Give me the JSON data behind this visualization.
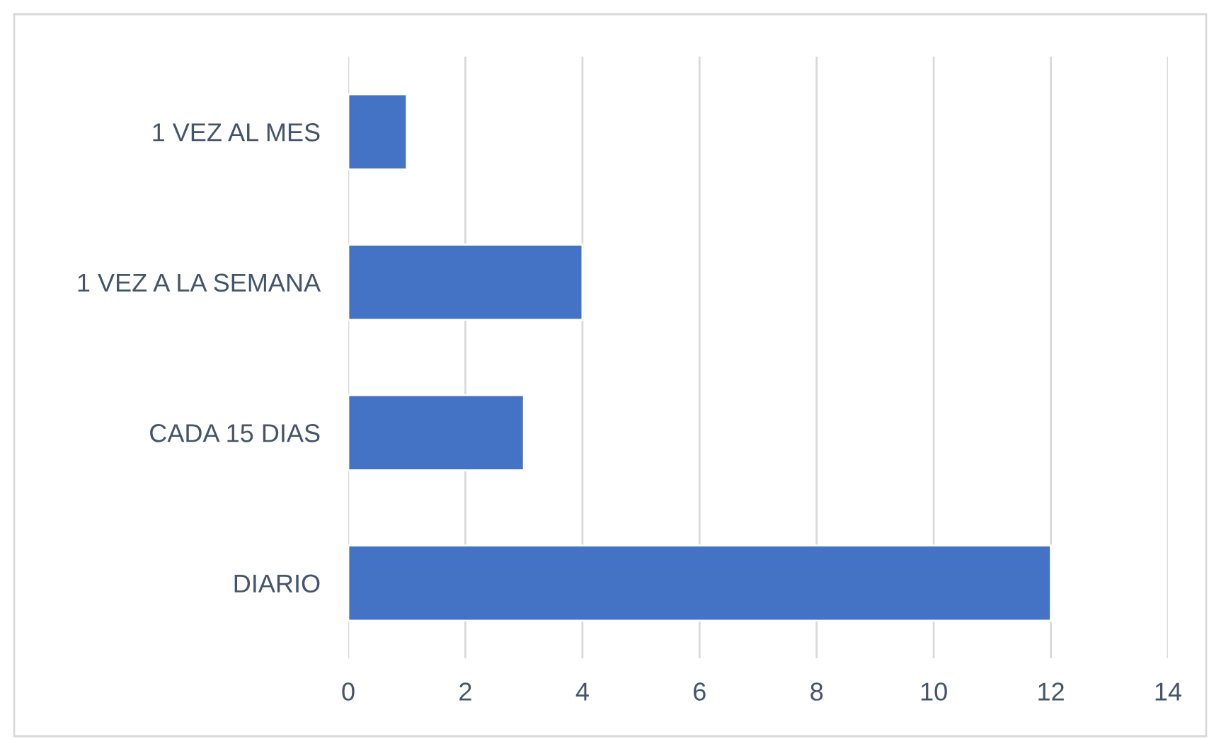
{
  "chart_data": {
    "type": "bar",
    "orientation": "horizontal",
    "categories": [
      "1 VEZ AL MES",
      "1 VEZ A LA SEMANA",
      "CADA 15 DIAS",
      "DIARIO"
    ],
    "values": [
      1,
      4,
      3,
      12
    ],
    "color": "#4472c4",
    "xlim": [
      0,
      14
    ],
    "xticks": [
      0,
      2,
      4,
      6,
      8,
      10,
      12,
      14
    ],
    "grid": "x"
  }
}
